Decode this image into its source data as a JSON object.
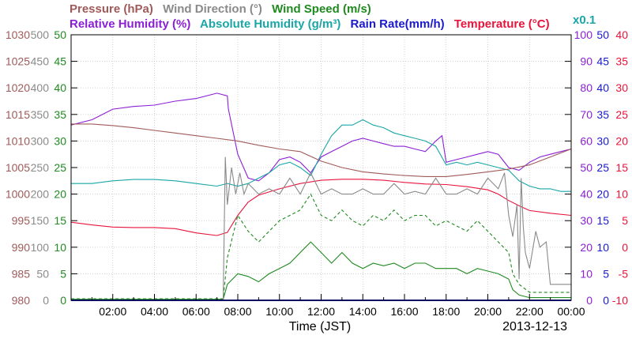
{
  "chart_data": {
    "type": "line",
    "header": {
      "row1": [
        {
          "text": "Pressure (hPa)",
          "color": "#a05a5a"
        },
        {
          "text": "Wind Direction (°)",
          "color": "#8a8a8a"
        },
        {
          "text": "Wind Speed (m/s)",
          "color": "#1f8a1f"
        }
      ],
      "row2": [
        {
          "text": "Relative Humidity (%)",
          "color": "#8b1fd6"
        },
        {
          "text": "Absolute Humidity (g/m³)",
          "color": "#1aa6a6"
        },
        {
          "text": "Rain Rate(mm/h)",
          "color": "#1a1acc"
        },
        {
          "text": "Temperature (°C)",
          "color": "#e8143c"
        }
      ],
      "scale_note": {
        "text": "x0.1",
        "color": "#1aa6a6"
      }
    },
    "xlabel": "Time (JST)",
    "date": "2013-12-13",
    "x_ticks": [
      "02:00",
      "04:00",
      "06:00",
      "08:00",
      "10:00",
      "12:00",
      "14:00",
      "16:00",
      "18:00",
      "20:00",
      "22:00",
      "00:00"
    ],
    "xlim_hours": [
      0,
      24
    ],
    "grid": true,
    "axes": {
      "pressure": {
        "color": "#a05a5a",
        "ticks": [
          1030,
          1025,
          1020,
          1015,
          1010,
          1005,
          1000,
          995,
          990,
          985,
          980
        ],
        "ylim": [
          980,
          1030
        ]
      },
      "wind_direction": {
        "color": "#8a8a8a",
        "ticks": [
          500,
          450,
          400,
          350,
          300,
          250,
          200,
          150,
          100,
          50,
          0
        ],
        "ylim": [
          0,
          500
        ]
      },
      "wind_speed": {
        "color": "#1f8a1f",
        "ticks": [
          50,
          45,
          40,
          35,
          30,
          25,
          20,
          15,
          10,
          5,
          0
        ],
        "ylim": [
          0,
          50
        ]
      },
      "humidity": {
        "color": "#8b1fd6",
        "ticks": [
          100,
          90,
          80,
          70,
          60,
          50,
          40,
          30,
          20,
          10,
          0
        ],
        "ylim": [
          0,
          100
        ]
      },
      "rain_rate": {
        "color": "#1a1acc",
        "ticks": [
          50,
          45,
          40,
          35,
          30,
          25,
          20,
          15,
          10,
          5,
          0
        ],
        "ylim": [
          0,
          50
        ]
      },
      "temperature": {
        "color": "#e8143c",
        "ticks": [
          40,
          35,
          30,
          25,
          20,
          15,
          10,
          5,
          0,
          -5,
          -10
        ],
        "ylim": [
          -10,
          40
        ]
      }
    },
    "series": [
      {
        "name": "Relative Humidity",
        "color": "#8b1fd6",
        "axis": "humidity",
        "dash": "",
        "points": [
          [
            0,
            66
          ],
          [
            1,
            68
          ],
          [
            2,
            72
          ],
          [
            3,
            73
          ],
          [
            4,
            73.5
          ],
          [
            5,
            75
          ],
          [
            6,
            76
          ],
          [
            7,
            78
          ],
          [
            7.5,
            77
          ],
          [
            7.55,
            72
          ],
          [
            8,
            55
          ],
          [
            8.5,
            46
          ],
          [
            9,
            45
          ],
          [
            9.5,
            48
          ],
          [
            10,
            53
          ],
          [
            10.5,
            54
          ],
          [
            11,
            52
          ],
          [
            11.5,
            48
          ],
          [
            12,
            54
          ],
          [
            12.5,
            56
          ],
          [
            13,
            58
          ],
          [
            13.5,
            60
          ],
          [
            14,
            61
          ],
          [
            14.5,
            60
          ],
          [
            15,
            59
          ],
          [
            15.5,
            58
          ],
          [
            16,
            58
          ],
          [
            16.5,
            57
          ],
          [
            17,
            56
          ],
          [
            17.5,
            60
          ],
          [
            17.8,
            62
          ],
          [
            18,
            52
          ],
          [
            18.5,
            53
          ],
          [
            19,
            54
          ],
          [
            19.5,
            55
          ],
          [
            20,
            56
          ],
          [
            20.5,
            55
          ],
          [
            21,
            50
          ],
          [
            21.5,
            49
          ],
          [
            22,
            52
          ],
          [
            22.5,
            54
          ],
          [
            23,
            55
          ],
          [
            23.5,
            56
          ],
          [
            24,
            57
          ]
        ]
      },
      {
        "name": "Absolute Humidity",
        "color": "#1aa6a6",
        "axis": "humidity",
        "dash": "",
        "points": [
          [
            0,
            44
          ],
          [
            1,
            44
          ],
          [
            2,
            45
          ],
          [
            3,
            45.5
          ],
          [
            4,
            45.5
          ],
          [
            5,
            45
          ],
          [
            6,
            44
          ],
          [
            7,
            43
          ],
          [
            7.5,
            44
          ],
          [
            8,
            43
          ],
          [
            8.5,
            44
          ],
          [
            9,
            46
          ],
          [
            9.5,
            48
          ],
          [
            10,
            51
          ],
          [
            10.5,
            52
          ],
          [
            11,
            50
          ],
          [
            11.5,
            47
          ],
          [
            12,
            55
          ],
          [
            12.5,
            62
          ],
          [
            13,
            66
          ],
          [
            13.5,
            66
          ],
          [
            14,
            68
          ],
          [
            14.5,
            66
          ],
          [
            15,
            65
          ],
          [
            15.5,
            63
          ],
          [
            16,
            62
          ],
          [
            16.5,
            61
          ],
          [
            17,
            60
          ],
          [
            17.5,
            58
          ],
          [
            18,
            51
          ],
          [
            18.5,
            52
          ],
          [
            19,
            51
          ],
          [
            19.5,
            52
          ],
          [
            20,
            51
          ],
          [
            20.5,
            50
          ],
          [
            21,
            49
          ],
          [
            21.5,
            45
          ],
          [
            22,
            43
          ],
          [
            22.5,
            42
          ],
          [
            23,
            42
          ],
          [
            23.5,
            41
          ],
          [
            24,
            41
          ]
        ]
      },
      {
        "name": "Pressure",
        "color": "#a05a5a",
        "axis": "pressure",
        "dash": "",
        "points": [
          [
            0,
            1013.2
          ],
          [
            1,
            1013.2
          ],
          [
            2,
            1012.9
          ],
          [
            3,
            1012.5
          ],
          [
            4,
            1012.0
          ],
          [
            5,
            1011.5
          ],
          [
            6,
            1011.0
          ],
          [
            7,
            1010.5
          ],
          [
            8,
            1010.0
          ],
          [
            9,
            1009.2
          ],
          [
            10,
            1008.5
          ],
          [
            11,
            1008.0
          ],
          [
            12,
            1006.2
          ],
          [
            13,
            1005.0
          ],
          [
            14,
            1004.2
          ],
          [
            15,
            1003.8
          ],
          [
            16,
            1003.5
          ],
          [
            17,
            1003.3
          ],
          [
            18,
            1003.3
          ],
          [
            19,
            1003.7
          ],
          [
            20,
            1004.2
          ],
          [
            21,
            1004.7
          ],
          [
            22,
            1005.5
          ],
          [
            23,
            1007.0
          ],
          [
            24,
            1008.5
          ]
        ]
      },
      {
        "name": "Temperature",
        "color": "#e8143c",
        "axis": "temperature",
        "dash": "",
        "points": [
          [
            0,
            4.7
          ],
          [
            1,
            4.2
          ],
          [
            2,
            3.8
          ],
          [
            3,
            3.7
          ],
          [
            4,
            3.7
          ],
          [
            5,
            3.5
          ],
          [
            6,
            2.7
          ],
          [
            7,
            2.2
          ],
          [
            7.5,
            2.8
          ],
          [
            8,
            6.0
          ],
          [
            8.5,
            8.5
          ],
          [
            9,
            9.8
          ],
          [
            10,
            11.0
          ],
          [
            11,
            12.0
          ],
          [
            12,
            12.6
          ],
          [
            13,
            12.8
          ],
          [
            14,
            12.8
          ],
          [
            15,
            12.6
          ],
          [
            16,
            12.2
          ],
          [
            17,
            11.9
          ],
          [
            18,
            11.8
          ],
          [
            19,
            11.4
          ],
          [
            20,
            10.8
          ],
          [
            20.5,
            10.0
          ],
          [
            21,
            8.8
          ],
          [
            21.5,
            7.8
          ],
          [
            22,
            6.9
          ],
          [
            23,
            6.4
          ],
          [
            24,
            6.0
          ]
        ]
      },
      {
        "name": "Wind Speed",
        "color": "#1f8a1f",
        "axis": "wind_speed",
        "dash": "",
        "points": [
          [
            0,
            0.2
          ],
          [
            7.3,
            0.2
          ],
          [
            7.5,
            3
          ],
          [
            8,
            5
          ],
          [
            8.5,
            4.5
          ],
          [
            9,
            3.5
          ],
          [
            9.5,
            5
          ],
          [
            10,
            6
          ],
          [
            10.5,
            7
          ],
          [
            11,
            9
          ],
          [
            11.5,
            11
          ],
          [
            12,
            9
          ],
          [
            12.5,
            7
          ],
          [
            13,
            9
          ],
          [
            13.5,
            7
          ],
          [
            14,
            6
          ],
          [
            14.5,
            7
          ],
          [
            15,
            6.5
          ],
          [
            15.5,
            7
          ],
          [
            16,
            6
          ],
          [
            16.5,
            7
          ],
          [
            17,
            7
          ],
          [
            17.5,
            6
          ],
          [
            18,
            6
          ],
          [
            18.5,
            6
          ],
          [
            19,
            5
          ],
          [
            19.5,
            6
          ],
          [
            20,
            5.5
          ],
          [
            20.5,
            5
          ],
          [
            21,
            4
          ],
          [
            21.2,
            2
          ],
          [
            21.5,
            1
          ],
          [
            22,
            0.5
          ],
          [
            24,
            0.5
          ]
        ]
      },
      {
        "name": "Wind Speed (gust)",
        "color": "#1f8a1f",
        "axis": "wind_speed",
        "dash": "4,3",
        "points": [
          [
            0,
            0.3
          ],
          [
            7.3,
            0.3
          ],
          [
            7.5,
            8
          ],
          [
            8,
            16
          ],
          [
            8.5,
            13
          ],
          [
            9,
            11
          ],
          [
            9.5,
            13
          ],
          [
            10,
            15
          ],
          [
            10.5,
            16
          ],
          [
            11,
            17
          ],
          [
            11.5,
            20
          ],
          [
            12,
            16
          ],
          [
            12.5,
            15
          ],
          [
            13,
            17
          ],
          [
            13.5,
            15
          ],
          [
            14,
            14
          ],
          [
            14.5,
            16
          ],
          [
            15,
            15
          ],
          [
            15.5,
            17
          ],
          [
            16,
            15
          ],
          [
            16.5,
            16
          ],
          [
            17,
            16
          ],
          [
            17.5,
            14
          ],
          [
            18,
            15
          ],
          [
            18.5,
            14
          ],
          [
            19,
            13
          ],
          [
            19.5,
            15
          ],
          [
            20,
            13
          ],
          [
            20.5,
            11
          ],
          [
            21,
            9
          ],
          [
            21.2,
            5
          ],
          [
            21.5,
            3
          ],
          [
            22,
            1.5
          ],
          [
            24,
            1.5
          ]
        ]
      },
      {
        "name": "Wind Direction",
        "color": "#8a8a8a",
        "axis": "wind_direction",
        "dash": "",
        "points": [
          [
            0,
            0
          ],
          [
            7.3,
            0
          ],
          [
            7.4,
            270
          ],
          [
            7.5,
            180
          ],
          [
            7.7,
            250
          ],
          [
            7.9,
            200
          ],
          [
            8.1,
            240
          ],
          [
            8.3,
            200
          ],
          [
            8.5,
            220
          ],
          [
            9,
            200
          ],
          [
            9.5,
            210
          ],
          [
            10,
            200
          ],
          [
            10.5,
            230
          ],
          [
            11,
            200
          ],
          [
            11.5,
            240
          ],
          [
            12,
            200
          ],
          [
            12.5,
            210
          ],
          [
            13,
            200
          ],
          [
            13.5,
            200
          ],
          [
            14,
            210
          ],
          [
            14.5,
            200
          ],
          [
            15,
            200
          ],
          [
            15.5,
            220
          ],
          [
            16,
            200
          ],
          [
            16.5,
            205
          ],
          [
            17,
            200
          ],
          [
            17.5,
            230
          ],
          [
            18,
            200
          ],
          [
            18.5,
            200
          ],
          [
            19,
            210
          ],
          [
            19.5,
            200
          ],
          [
            20,
            230
          ],
          [
            20.5,
            210
          ],
          [
            20.8,
            240
          ],
          [
            21,
            160
          ],
          [
            21.2,
            120
          ],
          [
            21.4,
            180
          ],
          [
            21.5,
            40
          ],
          [
            21.6,
            230
          ],
          [
            21.7,
            140
          ],
          [
            21.8,
            90
          ],
          [
            22,
            60
          ],
          [
            22.3,
            130
          ],
          [
            22.5,
            100
          ],
          [
            22.8,
            110
          ],
          [
            23,
            30
          ],
          [
            24,
            30
          ]
        ]
      },
      {
        "name": "Rain Rate",
        "color": "#1a1acc",
        "axis": "rain_rate",
        "dash": "",
        "points": [
          [
            0,
            0
          ],
          [
            24,
            0
          ]
        ]
      }
    ]
  }
}
